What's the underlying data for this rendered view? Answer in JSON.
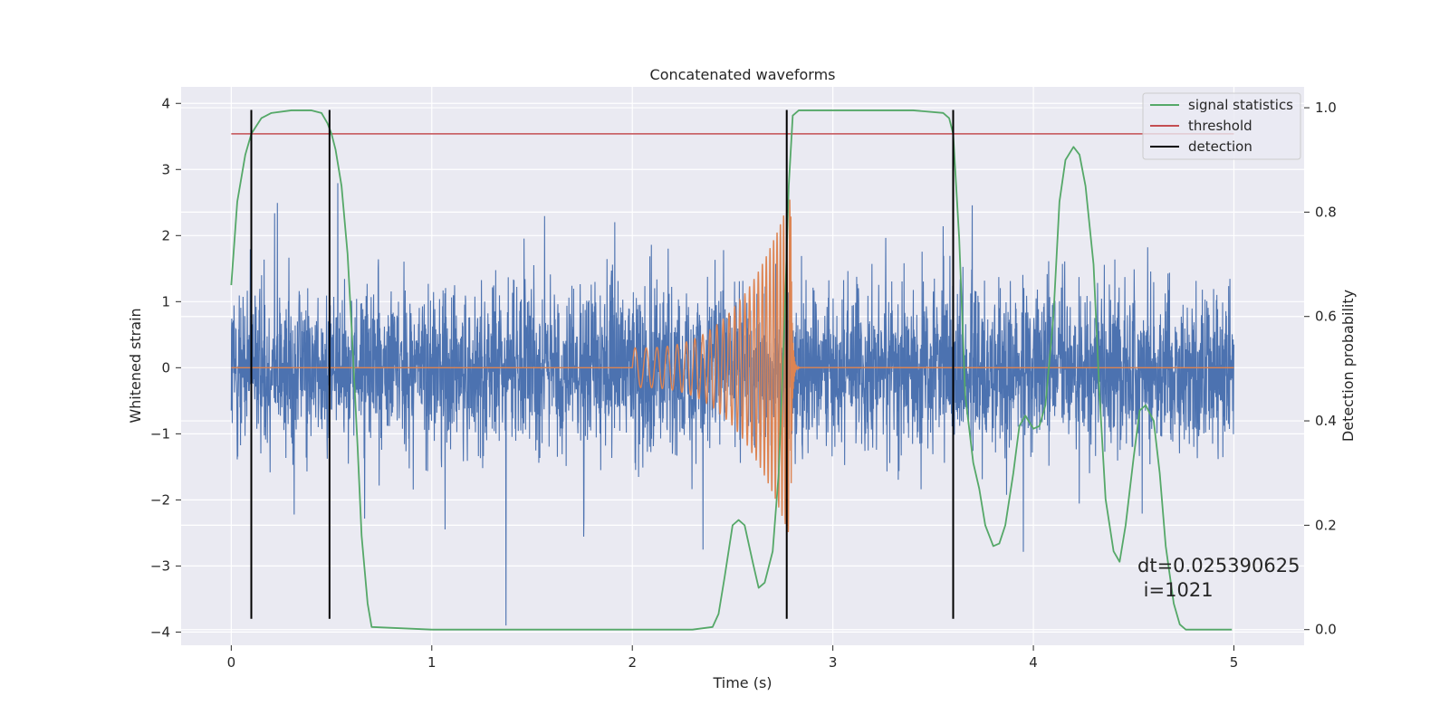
{
  "chart_data": {
    "type": "line",
    "title": "Concatenated waveforms",
    "xlabel": "Time (s)",
    "ylabel": "Whitened strain",
    "y2label": "Detection probability",
    "xlim": [
      -0.25,
      5.35
    ],
    "ylim": [
      -4.2,
      4.25
    ],
    "y2lim": [
      -0.03,
      1.04
    ],
    "xticks": [
      0,
      1,
      2,
      3,
      4,
      5
    ],
    "yticks": [
      -4,
      -3,
      -2,
      -1,
      0,
      1,
      2,
      3,
      4
    ],
    "y2ticks": [
      0.0,
      0.2,
      0.4,
      0.6,
      0.8,
      1.0
    ],
    "grid": true,
    "legend_position": "top-right",
    "series": [
      {
        "name": "",
        "axis": "left",
        "color": "#4c72b0",
        "kind": "noise",
        "x_range": [
          0,
          5
        ],
        "core_amplitude": 0.75,
        "max_abs": 3.9
      },
      {
        "name": "",
        "axis": "left",
        "color": "#dd8452",
        "kind": "chirp",
        "zero_before": 2.0,
        "chirp_start": 2.0,
        "chirp_end": 2.79,
        "start_amplitude": 0.3,
        "peak_amplitude": 2.6,
        "x_range": [
          0,
          5
        ]
      },
      {
        "name": "signal statistics",
        "axis": "right",
        "color": "#55a868",
        "x": [
          0,
          0.03,
          0.07,
          0.1,
          0.15,
          0.2,
          0.3,
          0.4,
          0.45,
          0.48,
          0.5,
          0.52,
          0.55,
          0.58,
          0.6,
          0.63,
          0.65,
          0.68,
          0.7,
          1.0,
          2.0,
          2.3,
          2.4,
          2.43,
          2.46,
          2.5,
          2.53,
          2.56,
          2.6,
          2.63,
          2.66,
          2.7,
          2.73,
          2.76,
          2.78,
          2.8,
          2.83,
          2.9,
          3.2,
          3.4,
          3.55,
          3.58,
          3.6,
          3.63,
          3.66,
          3.7,
          3.73,
          3.76,
          3.8,
          3.83,
          3.86,
          3.9,
          3.93,
          3.96,
          4.0,
          4.03,
          4.06,
          4.1,
          4.13,
          4.16,
          4.2,
          4.23,
          4.26,
          4.3,
          4.33,
          4.36,
          4.4,
          4.43,
          4.46,
          4.5,
          4.53,
          4.56,
          4.6,
          4.63,
          4.66,
          4.7,
          4.73,
          4.76,
          4.8,
          4.9,
          4.99
        ],
        "y": [
          0.66,
          0.82,
          0.91,
          0.95,
          0.98,
          0.99,
          0.995,
          0.995,
          0.99,
          0.97,
          0.95,
          0.92,
          0.85,
          0.72,
          0.58,
          0.35,
          0.18,
          0.05,
          0.005,
          0.0,
          0.0,
          0.0,
          0.005,
          0.03,
          0.1,
          0.2,
          0.21,
          0.2,
          0.13,
          0.08,
          0.09,
          0.15,
          0.3,
          0.6,
          0.85,
          0.985,
          0.995,
          0.995,
          0.995,
          0.995,
          0.99,
          0.98,
          0.95,
          0.75,
          0.45,
          0.32,
          0.27,
          0.2,
          0.16,
          0.165,
          0.2,
          0.3,
          0.39,
          0.41,
          0.385,
          0.39,
          0.43,
          0.6,
          0.82,
          0.9,
          0.925,
          0.91,
          0.85,
          0.7,
          0.45,
          0.25,
          0.15,
          0.13,
          0.2,
          0.33,
          0.42,
          0.43,
          0.4,
          0.3,
          0.16,
          0.05,
          0.01,
          0.0,
          0.0,
          0.0,
          0.0
        ]
      },
      {
        "name": "threshold",
        "axis": "right",
        "color": "#c44e52",
        "x": [
          0,
          5
        ],
        "y": [
          0.95,
          0.95
        ]
      },
      {
        "name": "detection",
        "axis": "left",
        "color": "#000000",
        "kind": "vlines",
        "x": [
          0.1,
          0.49,
          2.77,
          3.6
        ],
        "ymin": -3.8,
        "ymax": 3.9
      }
    ],
    "annotation": {
      "line1": "dt=0.025390625",
      "line2": " i=1021"
    }
  }
}
